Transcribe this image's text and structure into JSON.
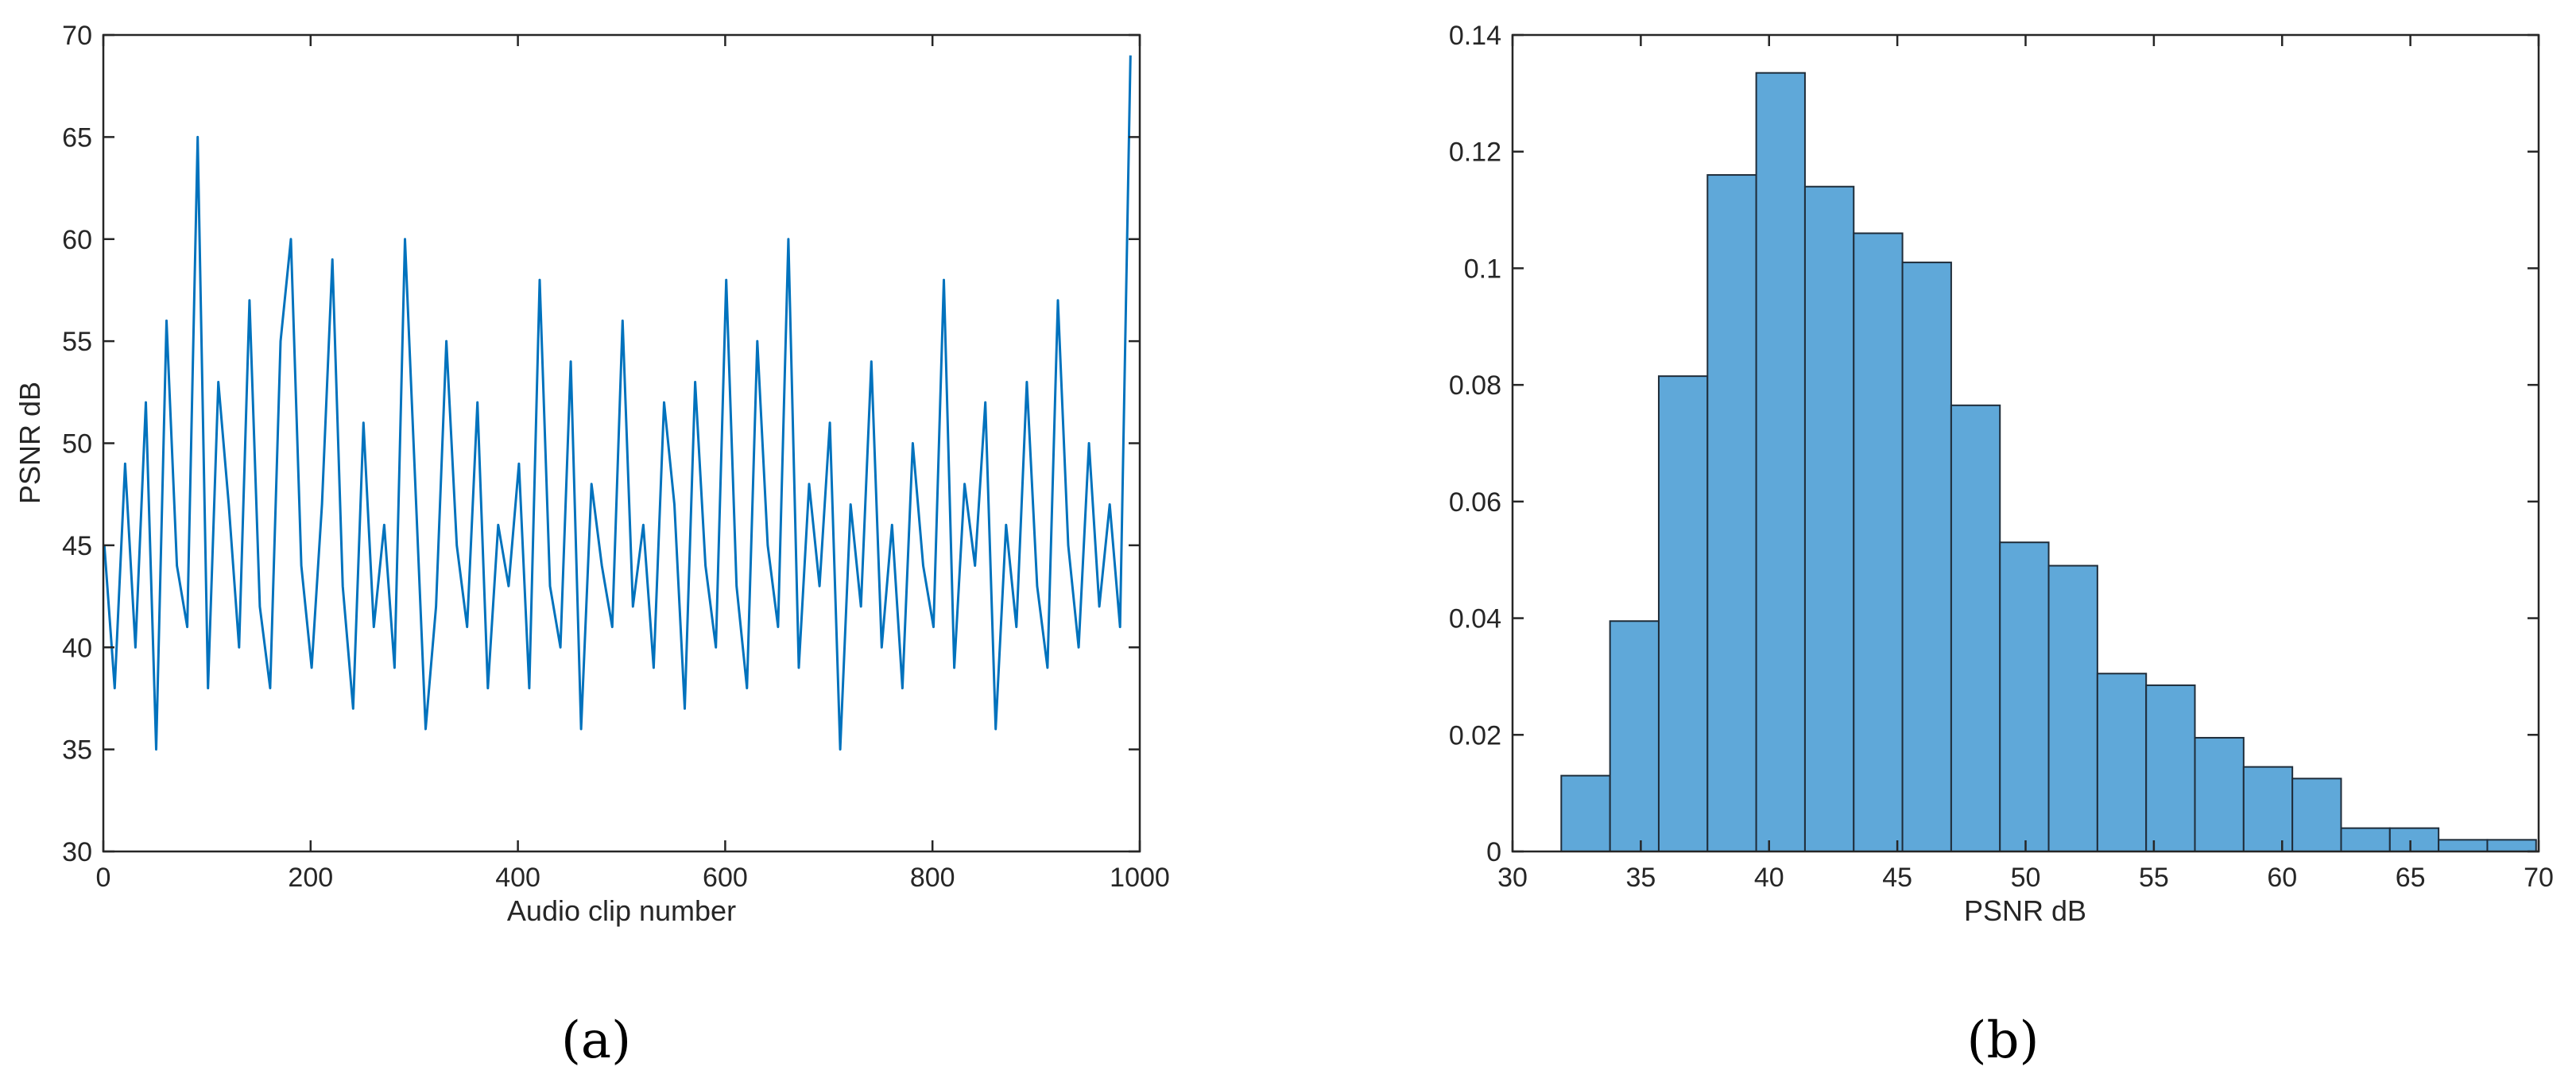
{
  "colors": {
    "line": "#0072BD",
    "bar_fill": "#5FA8D9",
    "bar_edge": "#1f2d3a",
    "axis": "#262626"
  },
  "panels": {
    "a": {
      "label": "(a)"
    },
    "b": {
      "label": "(b)"
    }
  },
  "chart_data": [
    {
      "type": "line",
      "xlabel": "Audio clip number",
      "ylabel": "PSNR dB",
      "xlim": [
        0,
        1000
      ],
      "ylim": [
        30,
        70
      ],
      "xticks": [
        0,
        200,
        400,
        600,
        800,
        1000
      ],
      "yticks": [
        30,
        35,
        40,
        45,
        50,
        55,
        60,
        65,
        70
      ],
      "grid": false,
      "series": [
        {
          "x_start": 1,
          "x_step": 10,
          "values": [
            45,
            38,
            49,
            40,
            52,
            35,
            56,
            44,
            41,
            65,
            38,
            53,
            47,
            40,
            57,
            42,
            38,
            55,
            60,
            44,
            39,
            47,
            59,
            43,
            37,
            51,
            41,
            46,
            39,
            60,
            48,
            36,
            42,
            55,
            45,
            41,
            52,
            38,
            46,
            43,
            49,
            38,
            58,
            43,
            40,
            54,
            36,
            48,
            44,
            41,
            56,
            42,
            46,
            39,
            52,
            47,
            37,
            53,
            44,
            40,
            58,
            43,
            38,
            55,
            45,
            41,
            60,
            39,
            48,
            43,
            51,
            35,
            47,
            42,
            54,
            40,
            46,
            38,
            50,
            44,
            41,
            58,
            39,
            48,
            44,
            52,
            36,
            46,
            41,
            53,
            43,
            39,
            57,
            45,
            40,
            50,
            42,
            47,
            41,
            69
          ]
        }
      ]
    },
    {
      "type": "bar",
      "xlabel": "PSNR dB",
      "ylabel": "",
      "xlim": [
        30,
        70
      ],
      "ylim": [
        0,
        0.14
      ],
      "xticks": [
        30,
        35,
        40,
        45,
        50,
        55,
        60,
        65,
        70
      ],
      "yticks": [
        0,
        0.02,
        0.04,
        0.06,
        0.08,
        0.1,
        0.12,
        0.14
      ],
      "ytick_labels": [
        "0",
        "0.02",
        "0.04",
        "0.06",
        "0.08",
        "0.1",
        "0.12",
        "0.14"
      ],
      "grid": false,
      "bin_edges": [
        31.9,
        33.8,
        35.7,
        37.6,
        39.5,
        41.4,
        43.3,
        45.2,
        47.1,
        49.0,
        50.9,
        52.8,
        54.7,
        56.6,
        58.5,
        60.4,
        62.3,
        64.2,
        66.1,
        68.0,
        69.9
      ],
      "values": [
        0.013,
        0.0395,
        0.0815,
        0.116,
        0.1335,
        0.114,
        0.106,
        0.101,
        0.0765,
        0.053,
        0.049,
        0.0305,
        0.0285,
        0.0195,
        0.0145,
        0.0125,
        0.004,
        0.004,
        0.002,
        0.002
      ]
    }
  ]
}
